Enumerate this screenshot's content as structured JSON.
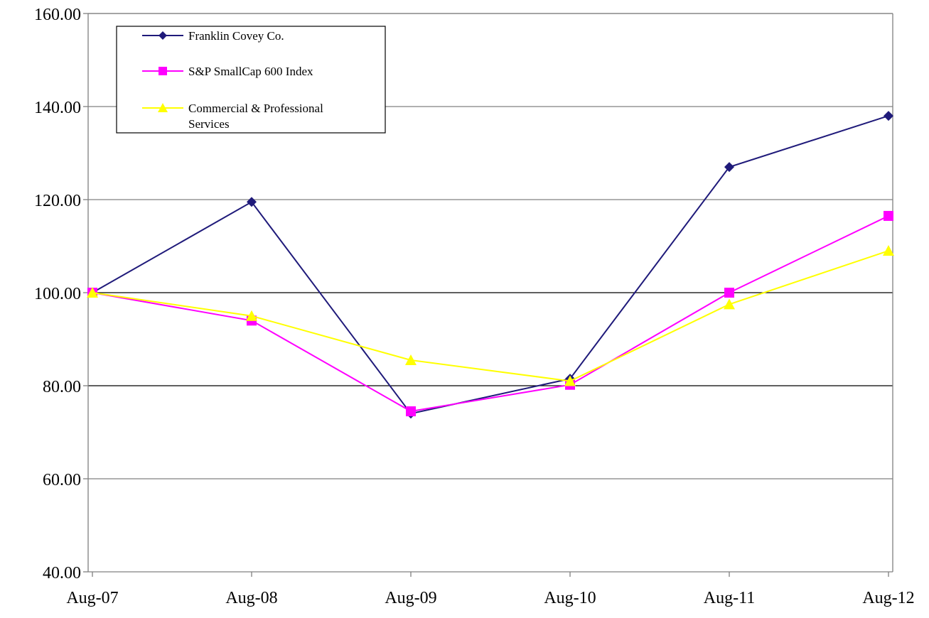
{
  "chart_data": {
    "type": "line",
    "categories": [
      "Aug-07",
      "Aug-08",
      "Aug-09",
      "Aug-10",
      "Aug-11",
      "Aug-12"
    ],
    "ylim": [
      40,
      160
    ],
    "yticks": [
      "40.00",
      "60.00",
      "80.00",
      "100.00",
      "120.00",
      "140.00",
      "160.00"
    ],
    "ytick_values": [
      40,
      60,
      80,
      100,
      120,
      140,
      160
    ],
    "grid": true,
    "legend_position": "top-left",
    "series": [
      {
        "name": "Franklin Covey Co.",
        "values": [
          100,
          119.5,
          74,
          81.5,
          127,
          138
        ],
        "color": "#1f1a7a",
        "marker": "diamond"
      },
      {
        "name": "S&P SmallCap 600 Index",
        "values": [
          100,
          94,
          74.5,
          80.2,
          100,
          116.5
        ],
        "color": "#ff00ff",
        "marker": "square"
      },
      {
        "name": "Commercial & Professional Services",
        "values": [
          100,
          95,
          85.5,
          81,
          97.5,
          109
        ],
        "color": "#ffff00",
        "marker": "triangle"
      }
    ]
  }
}
